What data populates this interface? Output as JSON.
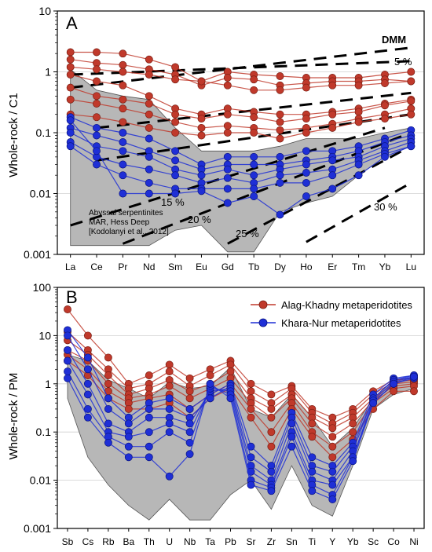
{
  "colors": {
    "alag": "#c0392b",
    "alag_edge": "#7a1f14",
    "khara": "#1f2fd6",
    "khara_edge": "#0b1680",
    "grey": "#b7b7b7",
    "grid": "#d0d0d0"
  },
  "chart_data": [
    {
      "type": "line",
      "panel_label": "A",
      "xlabel": "",
      "ylabel": "Whole-rock / C1",
      "y_scale": "log",
      "ylim": [
        0.001,
        10
      ],
      "y_tick_labels": [
        "0.001",
        "0.01",
        "0.1",
        "1",
        "10"
      ],
      "categories": [
        "La",
        "Ce",
        "Pr",
        "Nd",
        "Sm",
        "Eu",
        "Gd",
        "Tb",
        "Dy",
        "Ho",
        "Er",
        "Tm",
        "Yb",
        "Lu"
      ],
      "grid": true,
      "dmm_label": "DMM",
      "melting_curve_labels": [
        "5 %",
        "15 %",
        "20 %",
        "25 %",
        "30 %"
      ],
      "field_label": [
        "Abyssal serpentinites",
        "MAR, Hess Deep",
        "[Kodolanyi et al., 2012]"
      ],
      "field_upper": [
        1.1,
        0.5,
        0.4,
        0.35,
        0.12,
        0.05,
        0.05,
        0.05,
        0.06,
        0.08,
        0.08,
        0.08,
        0.1,
        0.12
      ],
      "field_lower": [
        0.0014,
        0.0014,
        0.0014,
        0.0014,
        0.0025,
        0.003,
        0.0011,
        0.0011,
        0.005,
        0.007,
        0.009,
        0.02,
        0.04,
        0.06
      ],
      "melting_curves": [
        {
          "label": "DMM",
          "x": [
            "La",
            "Lu"
          ],
          "y": [
            0.55,
            2.5
          ]
        },
        {
          "label": "5 %",
          "x": [
            "La",
            "Lu"
          ],
          "y": [
            0.9,
            1.5
          ]
        },
        {
          "label": "",
          "x": [
            "Ce",
            "Lu"
          ],
          "y": [
            0.12,
            0.45
          ]
        },
        {
          "label": "",
          "x": [
            "Ce",
            "Lu"
          ],
          "y": [
            0.035,
            0.2
          ]
        },
        {
          "label": "15 %",
          "x": [
            "La",
            "Yb"
          ],
          "y": [
            0.003,
            0.12
          ]
        },
        {
          "label": "20 %",
          "x": [
            "Pr",
            "Lu"
          ],
          "y": [
            0.0015,
            0.1
          ]
        },
        {
          "label": "25 %",
          "x": [
            "Gd",
            "Lu"
          ],
          "y": [
            0.0015,
            0.06
          ]
        },
        {
          "label": "30 %",
          "x": [
            "Ho",
            "Lu"
          ],
          "y": [
            0.0016,
            0.015
          ]
        }
      ],
      "series": [
        {
          "name": "Alag-Khadny metaperidotites",
          "values": [
            [
              2.1,
              2.1,
              2.0,
              1.6,
              1.2,
              0.7,
              1.0,
              0.9,
              0.85,
              0.8,
              0.8,
              0.8,
              0.9,
              1.0
            ],
            [
              1.6,
              1.4,
              1.3,
              1.1,
              0.9,
              0.6,
              0.8,
              0.75,
              0.6,
              0.65,
              0.7,
              0.7,
              0.75,
              0.7
            ],
            [
              1.2,
              1.1,
              1.0,
              0.9,
              0.75,
              0.7,
              0.6,
              0.5,
              0.5,
              0.55,
              0.6,
              0.6,
              0.65,
              0.7
            ],
            [
              0.9,
              0.7,
              0.6,
              0.4,
              0.25,
              0.2,
              0.25,
              0.22,
              0.2,
              0.2,
              0.22,
              0.25,
              0.3,
              0.35
            ],
            [
              0.55,
              0.4,
              0.35,
              0.3,
              0.2,
              0.17,
              0.2,
              0.18,
              0.15,
              0.17,
              0.2,
              0.22,
              0.28,
              0.33
            ],
            [
              0.35,
              0.3,
              0.25,
              0.2,
              0.15,
              0.12,
              0.13,
              0.12,
              0.11,
              0.12,
              0.14,
              0.17,
              0.2,
              0.25
            ],
            [
              0.2,
              0.18,
              0.15,
              0.12,
              0.1,
              0.09,
              0.1,
              0.1,
              0.08,
              0.1,
              0.12,
              0.15,
              0.17,
              0.2
            ]
          ]
        },
        {
          "name": "Khara-Nur metaperidotites",
          "values": [
            [
              0.18,
              0.12,
              0.1,
              0.08,
              0.05,
              0.03,
              0.04,
              0.04,
              0.04,
              0.05,
              0.05,
              0.06,
              0.08,
              0.11
            ],
            [
              0.12,
              0.09,
              0.07,
              0.05,
              0.035,
              0.025,
              0.03,
              0.03,
              0.03,
              0.035,
              0.04,
              0.05,
              0.07,
              0.09
            ],
            [
              0.1,
              0.06,
              0.05,
              0.04,
              0.025,
              0.02,
              0.025,
              0.02,
              0.025,
              0.03,
              0.035,
              0.04,
              0.06,
              0.08
            ],
            [
              0.07,
              0.04,
              0.03,
              0.025,
              0.02,
              0.015,
              0.018,
              0.015,
              0.02,
              0.022,
              0.025,
              0.035,
              0.05,
              0.07
            ],
            [
              0.06,
              0.03,
              0.02,
              0.015,
              0.012,
              0.012,
              0.012,
              0.012,
              0.015,
              0.015,
              0.02,
              0.03,
              0.045,
              0.06
            ],
            [
              0.16,
              0.05,
              0.01,
              0.01,
              0.01,
              0.011,
              0.007,
              0.009,
              0.0045,
              0.009,
              0.012,
              0.02,
              0.04,
              0.06
            ]
          ]
        }
      ]
    },
    {
      "type": "line",
      "panel_label": "B",
      "xlabel": "",
      "ylabel": "Whole-rock / PM",
      "y_scale": "log",
      "ylim": [
        0.001,
        100
      ],
      "y_tick_labels": [
        "0.001",
        "0.01",
        "0.1",
        "1",
        "10",
        "100"
      ],
      "categories": [
        "Sb",
        "Cs",
        "Rb",
        "Ba",
        "Th",
        "U",
        "Nb",
        "Ta",
        "Pb",
        "Sr",
        "Zr",
        "Sn",
        "Ti",
        "Y",
        "Yb",
        "Sc",
        "Co",
        "Ni"
      ],
      "grid": true,
      "legend_position": "top-right",
      "field_upper": [
        4,
        3,
        1.2,
        0.8,
        0.5,
        1.1,
        0.8,
        0.9,
        2.2,
        0.3,
        0.2,
        0.6,
        0.2,
        0.05,
        0.12,
        0.5,
        1.2,
        1.3
      ],
      "field_lower": [
        0.5,
        0.03,
        0.008,
        0.003,
        0.0015,
        0.004,
        0.0015,
        0.0015,
        0.005,
        0.01,
        0.0025,
        0.02,
        0.003,
        0.0018,
        0.02,
        0.3,
        0.6,
        0.8
      ],
      "series": [
        {
          "name": "Alag-Khadny metaperidotites",
          "values": [
            [
              35,
              10,
              3.5,
              1.0,
              1.5,
              2.5,
              1.3,
              2.0,
              3.0,
              1.0,
              0.6,
              0.9,
              0.3,
              0.2,
              0.3,
              0.7,
              1.2,
              1.3
            ],
            [
              12,
              5,
              2.0,
              0.8,
              1.0,
              1.8,
              0.9,
              1.5,
              2.5,
              0.7,
              0.4,
              0.8,
              0.25,
              0.15,
              0.25,
              0.6,
              1.1,
              1.2
            ],
            [
              8,
              4,
              1.5,
              0.6,
              0.8,
              1.2,
              0.7,
              1.0,
              1.8,
              0.5,
              0.3,
              0.6,
              0.2,
              0.12,
              0.2,
              0.5,
              1.0,
              1.1
            ],
            [
              5,
              3,
              1.0,
              0.5,
              0.6,
              0.9,
              0.5,
              0.8,
              1.3,
              0.4,
              0.2,
              0.5,
              0.15,
              0.08,
              0.15,
              0.45,
              0.9,
              1.0
            ],
            [
              4,
              2,
              0.7,
              0.4,
              0.5,
              0.6,
              0.3,
              0.6,
              1.0,
              0.3,
              0.1,
              0.4,
              0.1,
              0.05,
              0.1,
              0.4,
              0.8,
              0.9
            ],
            [
              3,
              1.5,
              0.5,
              0.3,
              0.3,
              0.4,
              0.2,
              0.5,
              0.8,
              0.2,
              0.05,
              0.3,
              0.08,
              0.03,
              0.07,
              0.3,
              0.7,
              0.7
            ]
          ]
        },
        {
          "name": "Khara-Nur metaperidotites",
          "values": [
            [
              13,
              3.5,
              0.5,
              0.2,
              0.4,
              0.5,
              0.3,
              0.6,
              1.0,
              0.05,
              0.02,
              0.25,
              0.03,
              0.02,
              0.06,
              0.6,
              1.3,
              1.5
            ],
            [
              10,
              2.0,
              0.3,
              0.15,
              0.3,
              0.3,
              0.2,
              0.5,
              0.9,
              0.03,
              0.015,
              0.2,
              0.02,
              0.015,
              0.05,
              0.5,
              1.2,
              1.4
            ],
            [
              5,
              1.0,
              0.15,
              0.1,
              0.2,
              0.2,
              0.15,
              0.7,
              0.8,
              0.02,
              0.01,
              0.15,
              0.015,
              0.01,
              0.04,
              0.5,
              1.2,
              1.5
            ],
            [
              3,
              0.6,
              0.1,
              0.08,
              0.1,
              0.15,
              0.1,
              0.8,
              0.7,
              0.015,
              0.008,
              0.1,
              0.01,
              0.008,
              0.03,
              0.45,
              1.1,
              1.4
            ],
            [
              1.8,
              0.3,
              0.08,
              0.05,
              0.05,
              0.1,
              0.06,
              0.9,
              0.6,
              0.01,
              0.007,
              0.08,
              0.008,
              0.005,
              0.03,
              0.4,
              1.0,
              1.3
            ],
            [
              1.3,
              0.2,
              0.06,
              0.03,
              0.03,
              0.012,
              0.035,
              1.0,
              0.5,
              0.008,
              0.006,
              0.05,
              0.006,
              0.004,
              0.025,
              0.4,
              1.0,
              1.4
            ]
          ]
        }
      ]
    }
  ]
}
